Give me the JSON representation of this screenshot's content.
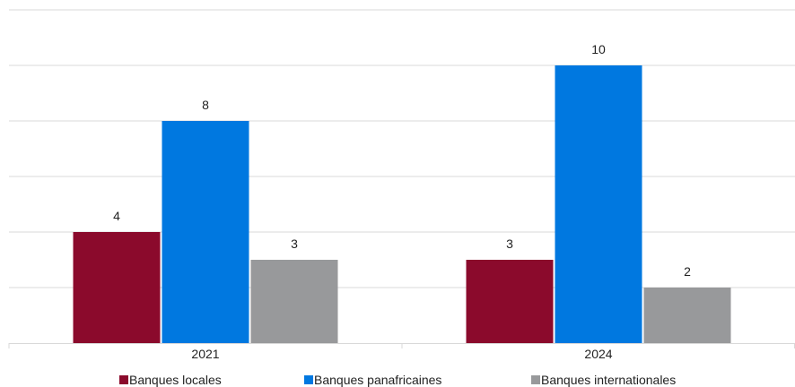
{
  "chart_data": {
    "type": "bar",
    "categories": [
      "2021",
      "2024"
    ],
    "series": [
      {
        "name": "Banques locales",
        "values": [
          4,
          3
        ],
        "color": "#8B0A2C"
      },
      {
        "name": "Banques panafricaines",
        "values": [
          8,
          10
        ],
        "color": "#0078E0"
      },
      {
        "name": "Banques internationales",
        "values": [
          3,
          2
        ],
        "color": "#98999B"
      }
    ],
    "ylim": [
      0,
      12
    ],
    "ytick_step": 2,
    "grid": true,
    "y_axis_labels_visible": false,
    "data_labels": true,
    "legend_position": "bottom"
  }
}
